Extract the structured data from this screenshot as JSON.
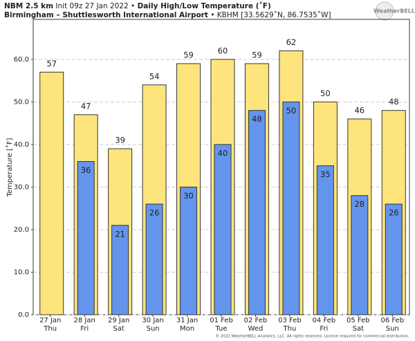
{
  "chart_data": {
    "type": "bar",
    "title_parts": [
      "NBM 2.5 km",
      "Init 09z 27 Jan 2022 •",
      "Daily High/Low Temperature (˚F)"
    ],
    "subtitle_parts": [
      "Birmingham – Shuttlesworth International Airport",
      "• KBHM [33.5629˚N, 86.7535˚W]"
    ],
    "y_label": "Temperature [˚F]",
    "footer": "© 2022 WeatherBELL Analytics, LLC. All rights reserved. License required for commercial distribution.",
    "logo": "WeatherBELL",
    "categories": [
      "27 Jan",
      "28 Jan",
      "29 Jan",
      "30 Jan",
      "31 Jan",
      "01 Feb",
      "02 Feb",
      "03 Feb",
      "04 Feb",
      "05 Feb",
      "06 Feb"
    ],
    "weekdays": [
      "Thu",
      "Fri",
      "Sat",
      "Sun",
      "Mon",
      "Tue",
      "Wed",
      "Thu",
      "Fri",
      "Sat",
      "Sun"
    ],
    "series": [
      {
        "color": "#fee47c",
        "values": [
          57,
          47,
          39,
          54,
          59,
          60,
          59,
          62,
          50,
          46,
          48
        ]
      },
      {
        "color": "#6495ed",
        "values": [
          null,
          36,
          21,
          26,
          30,
          40,
          48,
          50,
          35,
          28,
          26
        ]
      }
    ],
    "ylim": [
      0,
      69.4
    ],
    "yticks": [
      {
        "value": 0,
        "label": "0.0"
      },
      {
        "value": 10,
        "label": "10.0"
      },
      {
        "value": 20,
        "label": "20.0"
      },
      {
        "value": 30,
        "label": "30.0"
      },
      {
        "value": 40,
        "label": "40.0"
      },
      {
        "value": 50,
        "label": "50.0"
      },
      {
        "value": 60,
        "label": "60.0"
      }
    ],
    "grid": true
  }
}
